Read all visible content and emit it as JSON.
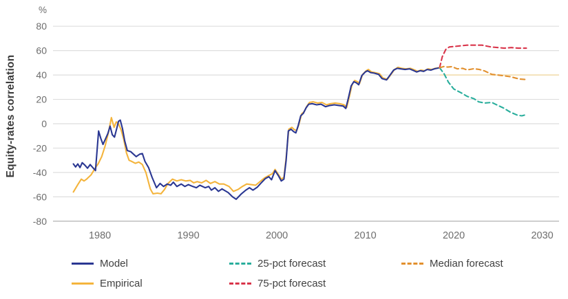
{
  "chart": {
    "unit": "%",
    "y_axis_title": "Equity-rates correlation",
    "colors": {
      "grid": "#dedede",
      "baseline_axis": "#a9a9a9",
      "tick_text": "#6d6d6d",
      "reference_line": "#f3ddae"
    }
  },
  "legend": {
    "items": [
      {
        "label": "Model",
        "color": "#2a3792",
        "dash": false
      },
      {
        "label": "Empirical",
        "color": "#f4b43c",
        "dash": false
      },
      {
        "label": "25-pct forecast",
        "color": "#29ae9c",
        "dash": true
      },
      {
        "label": "75-pct forecast",
        "color": "#d9344a",
        "dash": true
      },
      {
        "label": "Median forecast",
        "color": "#e2902e",
        "dash": true
      }
    ]
  },
  "chart_data": {
    "type": "line",
    "title": "",
    "xlabel": "",
    "ylabel": "Equity-rates correlation",
    "unit": "%",
    "grid": true,
    "legend_position": "bottom",
    "xlim": [
      1974.7,
      2031.9
    ],
    "ylim": [
      -80,
      80
    ],
    "x_ticks": [
      1980,
      1990,
      2000,
      2010,
      2020,
      2030
    ],
    "y_ticks": [
      80,
      60,
      40,
      20,
      0,
      -20,
      -40,
      -60,
      -80
    ],
    "reference_line": {
      "value": 40,
      "from": 2018.4,
      "to": 2031.9
    },
    "series": [
      {
        "name": "Empirical",
        "color": "#f4b43c",
        "style": "solid",
        "points": [
          [
            1977.0,
            -56
          ],
          [
            1977.5,
            -50
          ],
          [
            1977.9,
            -45.5
          ],
          [
            1978.2,
            -47
          ],
          [
            1978.5,
            -45.5
          ],
          [
            1979.0,
            -42
          ],
          [
            1979.5,
            -36
          ],
          [
            1979.8,
            -33
          ],
          [
            1980.2,
            -27
          ],
          [
            1980.6,
            -18
          ],
          [
            1981.0,
            -6
          ],
          [
            1981.3,
            5
          ],
          [
            1981.6,
            -3
          ],
          [
            1981.85,
            1.5
          ],
          [
            1982.1,
            0
          ],
          [
            1982.4,
            -5
          ],
          [
            1982.7,
            -13
          ],
          [
            1983.0,
            -24
          ],
          [
            1983.3,
            -30
          ],
          [
            1983.6,
            -31
          ],
          [
            1984.0,
            -32.5
          ],
          [
            1984.4,
            -31.5
          ],
          [
            1984.8,
            -33.5
          ],
          [
            1985.2,
            -40
          ],
          [
            1985.7,
            -53.5
          ],
          [
            1986.0,
            -57.5
          ],
          [
            1986.5,
            -57
          ],
          [
            1986.9,
            -57.5
          ],
          [
            1987.3,
            -54
          ],
          [
            1987.7,
            -49
          ],
          [
            1988.2,
            -45.5
          ],
          [
            1988.7,
            -47
          ],
          [
            1989.2,
            -46
          ],
          [
            1989.7,
            -47
          ],
          [
            1990.2,
            -46.5
          ],
          [
            1990.6,
            -48.5
          ],
          [
            1991.0,
            -47.5
          ],
          [
            1991.5,
            -48.5
          ],
          [
            1992.0,
            -46.5
          ],
          [
            1992.5,
            -49
          ],
          [
            1993.0,
            -47.5
          ],
          [
            1993.5,
            -49.5
          ],
          [
            1994.0,
            -49.5
          ],
          [
            1994.6,
            -51.5
          ],
          [
            1995.1,
            -55.5
          ],
          [
            1995.6,
            -54
          ],
          [
            1996.1,
            -51.5
          ],
          [
            1996.6,
            -49.5
          ],
          [
            1997.1,
            -50
          ],
          [
            1997.6,
            -50.5
          ],
          [
            1998.1,
            -47.5
          ],
          [
            1998.6,
            -44.5
          ],
          [
            1999.1,
            -42.5
          ],
          [
            1999.5,
            -41
          ],
          [
            1999.8,
            -37.5
          ],
          [
            2000.2,
            -42
          ],
          [
            2000.5,
            -45.5
          ],
          [
            2000.8,
            -44
          ],
          [
            2001.05,
            -28
          ],
          [
            2001.35,
            -4.5
          ],
          [
            2001.7,
            -3
          ],
          [
            2002.0,
            -5
          ],
          [
            2002.25,
            -5.5
          ],
          [
            2002.5,
            -0.5
          ],
          [
            2002.8,
            8
          ],
          [
            2003.1,
            10
          ],
          [
            2003.4,
            14.5
          ],
          [
            2003.7,
            17.5
          ],
          [
            2004.1,
            18
          ],
          [
            2004.6,
            17
          ],
          [
            2005.1,
            17.5
          ],
          [
            2005.6,
            15.5
          ],
          [
            2006.1,
            16.5
          ],
          [
            2006.6,
            17
          ],
          [
            2007.1,
            16.5
          ],
          [
            2007.6,
            15.5
          ],
          [
            2007.9,
            13.5
          ],
          [
            2008.2,
            22.5
          ],
          [
            2008.5,
            32
          ],
          [
            2008.8,
            35.5
          ],
          [
            2009.1,
            34.5
          ],
          [
            2009.35,
            33
          ],
          [
            2009.7,
            40.5
          ],
          [
            2010.1,
            43.5
          ],
          [
            2010.35,
            44.5
          ],
          [
            2010.7,
            42.5
          ],
          [
            2011.1,
            42
          ],
          [
            2011.6,
            41
          ],
          [
            2012.0,
            37.5
          ],
          [
            2012.5,
            36.5
          ],
          [
            2012.9,
            40.5
          ],
          [
            2013.3,
            44.5
          ],
          [
            2013.7,
            46.3
          ],
          [
            2014.1,
            45.5
          ],
          [
            2014.6,
            45
          ],
          [
            2015.1,
            45.5
          ],
          [
            2015.6,
            44
          ],
          [
            2015.9,
            43
          ],
          [
            2016.3,
            44
          ],
          [
            2016.7,
            43.5
          ],
          [
            2017.1,
            45
          ],
          [
            2017.5,
            44.5
          ],
          [
            2017.9,
            45.5
          ],
          [
            2018.4,
            46
          ]
        ]
      },
      {
        "name": "Model",
        "color": "#2a3792",
        "style": "solid",
        "points": [
          [
            1977.0,
            -33
          ],
          [
            1977.25,
            -35.5
          ],
          [
            1977.5,
            -33
          ],
          [
            1977.75,
            -36
          ],
          [
            1978.0,
            -32
          ],
          [
            1978.3,
            -34
          ],
          [
            1978.6,
            -36.5
          ],
          [
            1978.9,
            -33.5
          ],
          [
            1979.2,
            -36
          ],
          [
            1979.5,
            -38.5
          ],
          [
            1979.85,
            -6
          ],
          [
            1980.1,
            -12
          ],
          [
            1980.35,
            -17
          ],
          [
            1980.6,
            -13
          ],
          [
            1980.9,
            -8
          ],
          [
            1981.15,
            -2
          ],
          [
            1981.4,
            -9
          ],
          [
            1981.65,
            -11
          ],
          [
            1981.9,
            -4
          ],
          [
            1982.1,
            2
          ],
          [
            1982.3,
            3
          ],
          [
            1982.55,
            -4
          ],
          [
            1982.8,
            -14
          ],
          [
            1983.1,
            -22
          ],
          [
            1983.5,
            -23
          ],
          [
            1983.8,
            -25
          ],
          [
            1984.1,
            -27
          ],
          [
            1984.5,
            -25
          ],
          [
            1984.8,
            -24.5
          ],
          [
            1985.1,
            -31
          ],
          [
            1985.5,
            -36
          ],
          [
            1985.9,
            -44
          ],
          [
            1986.4,
            -52.5
          ],
          [
            1986.8,
            -49
          ],
          [
            1987.2,
            -51.5
          ],
          [
            1987.6,
            -49.5
          ],
          [
            1988.0,
            -50.5
          ],
          [
            1988.3,
            -48
          ],
          [
            1988.7,
            -51.5
          ],
          [
            1989.2,
            -49.5
          ],
          [
            1989.6,
            -51.5
          ],
          [
            1990.0,
            -50
          ],
          [
            1990.5,
            -51.5
          ],
          [
            1990.9,
            -52.5
          ],
          [
            1991.3,
            -50.5
          ],
          [
            1991.9,
            -52.5
          ],
          [
            1992.3,
            -51.5
          ],
          [
            1992.6,
            -54.5
          ],
          [
            1993.0,
            -52.5
          ],
          [
            1993.4,
            -55.5
          ],
          [
            1993.8,
            -53.5
          ],
          [
            1994.5,
            -56.5
          ],
          [
            1995.0,
            -60
          ],
          [
            1995.4,
            -62
          ],
          [
            1996.0,
            -57.5
          ],
          [
            1996.5,
            -54.5
          ],
          [
            1996.9,
            -52.5
          ],
          [
            1997.3,
            -54.5
          ],
          [
            1997.8,
            -52
          ],
          [
            1998.3,
            -48
          ],
          [
            1998.7,
            -45
          ],
          [
            1999.1,
            -43.5
          ],
          [
            1999.4,
            -46
          ],
          [
            1999.8,
            -38.5
          ],
          [
            2000.2,
            -43
          ],
          [
            2000.5,
            -47
          ],
          [
            2000.8,
            -45.5
          ],
          [
            2001.05,
            -30
          ],
          [
            2001.3,
            -6
          ],
          [
            2001.6,
            -4.5
          ],
          [
            2001.9,
            -6.5
          ],
          [
            2002.15,
            -7.5
          ],
          [
            2002.4,
            -2
          ],
          [
            2002.7,
            6.5
          ],
          [
            2003.0,
            8.5
          ],
          [
            2003.3,
            13
          ],
          [
            2003.6,
            16
          ],
          [
            2004.0,
            16.5
          ],
          [
            2004.5,
            15.5
          ],
          [
            2005.0,
            16
          ],
          [
            2005.5,
            14
          ],
          [
            2006.0,
            15
          ],
          [
            2006.5,
            15.5
          ],
          [
            2007.0,
            15
          ],
          [
            2007.5,
            14.5
          ],
          [
            2007.8,
            12.5
          ],
          [
            2008.1,
            21.5
          ],
          [
            2008.4,
            31
          ],
          [
            2008.7,
            34.5
          ],
          [
            2009.0,
            33.5
          ],
          [
            2009.25,
            32
          ],
          [
            2009.6,
            39.5
          ],
          [
            2010.0,
            42.5
          ],
          [
            2010.25,
            43.5
          ],
          [
            2010.6,
            42
          ],
          [
            2011.0,
            41.5
          ],
          [
            2011.5,
            40.5
          ],
          [
            2011.9,
            37
          ],
          [
            2012.4,
            36
          ],
          [
            2012.8,
            40
          ],
          [
            2013.2,
            44
          ],
          [
            2013.6,
            45.5
          ],
          [
            2014.0,
            45
          ],
          [
            2014.5,
            44.5
          ],
          [
            2015.0,
            45
          ],
          [
            2015.5,
            43.5
          ],
          [
            2015.8,
            42.5
          ],
          [
            2016.2,
            43.5
          ],
          [
            2016.6,
            43
          ],
          [
            2017.0,
            44.5
          ],
          [
            2017.4,
            44
          ],
          [
            2017.8,
            45
          ],
          [
            2018.1,
            45.5
          ],
          [
            2018.4,
            46
          ]
        ]
      },
      {
        "name": "25-pct forecast",
        "color": "#29ae9c",
        "style": "dashed",
        "points": [
          [
            2018.4,
            46
          ],
          [
            2018.9,
            41
          ],
          [
            2019.4,
            34
          ],
          [
            2020.0,
            28.5
          ],
          [
            2020.8,
            25.5
          ],
          [
            2021.5,
            22.5
          ],
          [
            2022.3,
            20.5
          ],
          [
            2022.8,
            18
          ],
          [
            2023.5,
            17
          ],
          [
            2024.3,
            17.5
          ],
          [
            2025.0,
            15
          ],
          [
            2025.6,
            13
          ],
          [
            2026.4,
            9.5
          ],
          [
            2027.2,
            7
          ],
          [
            2027.7,
            6.5
          ],
          [
            2028.2,
            7.5
          ]
        ]
      },
      {
        "name": "75-pct forecast",
        "color": "#d9344a",
        "style": "dashed",
        "points": [
          [
            2018.4,
            46
          ],
          [
            2018.7,
            55
          ],
          [
            2019.1,
            61
          ],
          [
            2019.5,
            63
          ],
          [
            2020.2,
            63.5
          ],
          [
            2020.8,
            64
          ],
          [
            2021.5,
            64.5
          ],
          [
            2022.3,
            64.5
          ],
          [
            2023.2,
            64.5
          ],
          [
            2024.2,
            63
          ],
          [
            2025.0,
            62.5
          ],
          [
            2025.7,
            62
          ],
          [
            2026.5,
            62.5
          ],
          [
            2027.3,
            62
          ],
          [
            2028.2,
            62
          ]
        ]
      },
      {
        "name": "Median forecast",
        "color": "#e2902e",
        "style": "dashed",
        "points": [
          [
            2018.4,
            46
          ],
          [
            2018.9,
            47
          ],
          [
            2019.3,
            46.5
          ],
          [
            2019.8,
            46.8
          ],
          [
            2020.4,
            45
          ],
          [
            2021.0,
            45.5
          ],
          [
            2021.5,
            44.2
          ],
          [
            2022.3,
            45.2
          ],
          [
            2022.9,
            44.5
          ],
          [
            2023.5,
            43.3
          ],
          [
            2024.3,
            40.5
          ],
          [
            2025.4,
            39.6
          ],
          [
            2026.4,
            38.6
          ],
          [
            2027.4,
            36.7
          ],
          [
            2028.2,
            36.3
          ]
        ]
      }
    ]
  }
}
